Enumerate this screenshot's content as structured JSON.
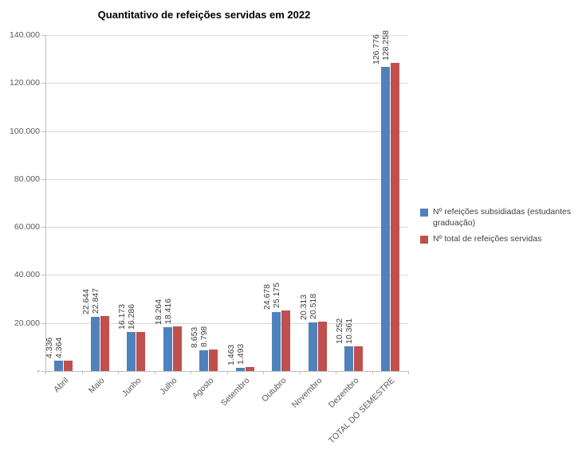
{
  "chart_data": {
    "type": "bar",
    "title": "Quantitativo de refeições servidas em 2022",
    "categories": [
      "Abril",
      "Maio",
      "Junho",
      "Julho",
      "Agosto",
      "Setembro",
      "Outubro",
      "Novembro",
      "Dezembro",
      "TOTAL DO SEMESTRE"
    ],
    "series": [
      {
        "name": "Nº refeições subsidiadas (estudantes graduação)",
        "color": "#4F81BD",
        "values": [
          4336,
          22644,
          16173,
          18264,
          8653,
          1463,
          24678,
          20313,
          10252,
          126776
        ]
      },
      {
        "name": "Nº total de refeições servidas",
        "color": "#C0504D",
        "values": [
          4364,
          22847,
          16286,
          18416,
          8798,
          1493,
          25175,
          20518,
          10361,
          128258
        ]
      }
    ],
    "y_axis": {
      "min": 0,
      "max": 140000,
      "step": 20000,
      "zero_label": "-",
      "tick_labels": [
        "-",
        "20.000",
        "40.000",
        "60.000",
        "80.000",
        "100.000",
        "120.000",
        "140.000"
      ]
    },
    "legend_position": "right",
    "grid": true,
    "number_format": "thousands-dot"
  }
}
